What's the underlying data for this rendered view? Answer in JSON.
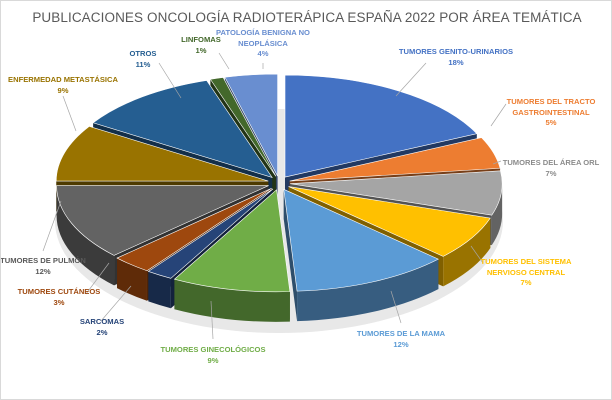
{
  "chart_data": {
    "type": "pie",
    "style": "3d-exploded",
    "title": "PUBLICACIONES ONCOLOGÍA RADIOTERÁPICA ESPAÑA 2022 POR ÁREA TEMÁTICA",
    "slices": [
      {
        "label": "TUMORES GENITO-URINARIOS",
        "value": 18,
        "pct": "18%",
        "color": "#4472c4"
      },
      {
        "label": "TUMORES DEL TRACTO GASTROINTESTINAL",
        "value": 5,
        "pct": "5%",
        "color": "#ed7d31"
      },
      {
        "label": "TUMORES DEL ÁREA ORL",
        "value": 7,
        "pct": "7%",
        "color": "#a5a5a5"
      },
      {
        "label": "TUMORES DEL SISTEMA NERVIOSO CENTRAL",
        "value": 7,
        "pct": "7%",
        "color": "#ffc000"
      },
      {
        "label": "TUMORES DE LA MAMA",
        "value": 12,
        "pct": "12%",
        "color": "#5b9bd5"
      },
      {
        "label": "TUMORES GINECOLÓGICOS",
        "value": 9,
        "pct": "9%",
        "color": "#70ad47"
      },
      {
        "label": "SARCOMAS",
        "value": 2,
        "pct": "2%",
        "color": "#264478"
      },
      {
        "label": "TUMORES CUTÁNEOS",
        "value": 3,
        "pct": "3%",
        "color": "#9e480e"
      },
      {
        "label": "TUMORES DE PULMÓN",
        "value": 12,
        "pct": "12%",
        "color": "#636363"
      },
      {
        "label": "ENFERMEDAD METASTÁSICA",
        "value": 9,
        "pct": "9%",
        "color": "#997300"
      },
      {
        "label": "OTROS",
        "value": 11,
        "pct": "11%",
        "color": "#255e91"
      },
      {
        "label": "LINFOMAS",
        "value": 1,
        "pct": "1%",
        "color": "#43682b"
      },
      {
        "label": "PATOLOGÍA BENIGNA NO NEOPLÁSICA",
        "value": 4,
        "pct": "4%",
        "color": "#698ed0"
      }
    ],
    "label_colors": [
      "#4472c4",
      "#ed7d31",
      "#8c8c8c",
      "#ffc000",
      "#5b9bd5",
      "#70ad47",
      "#264478",
      "#9e480e",
      "#595959",
      "#997300",
      "#255e91",
      "#43682b",
      "#698ed0"
    ],
    "legend": "none"
  }
}
